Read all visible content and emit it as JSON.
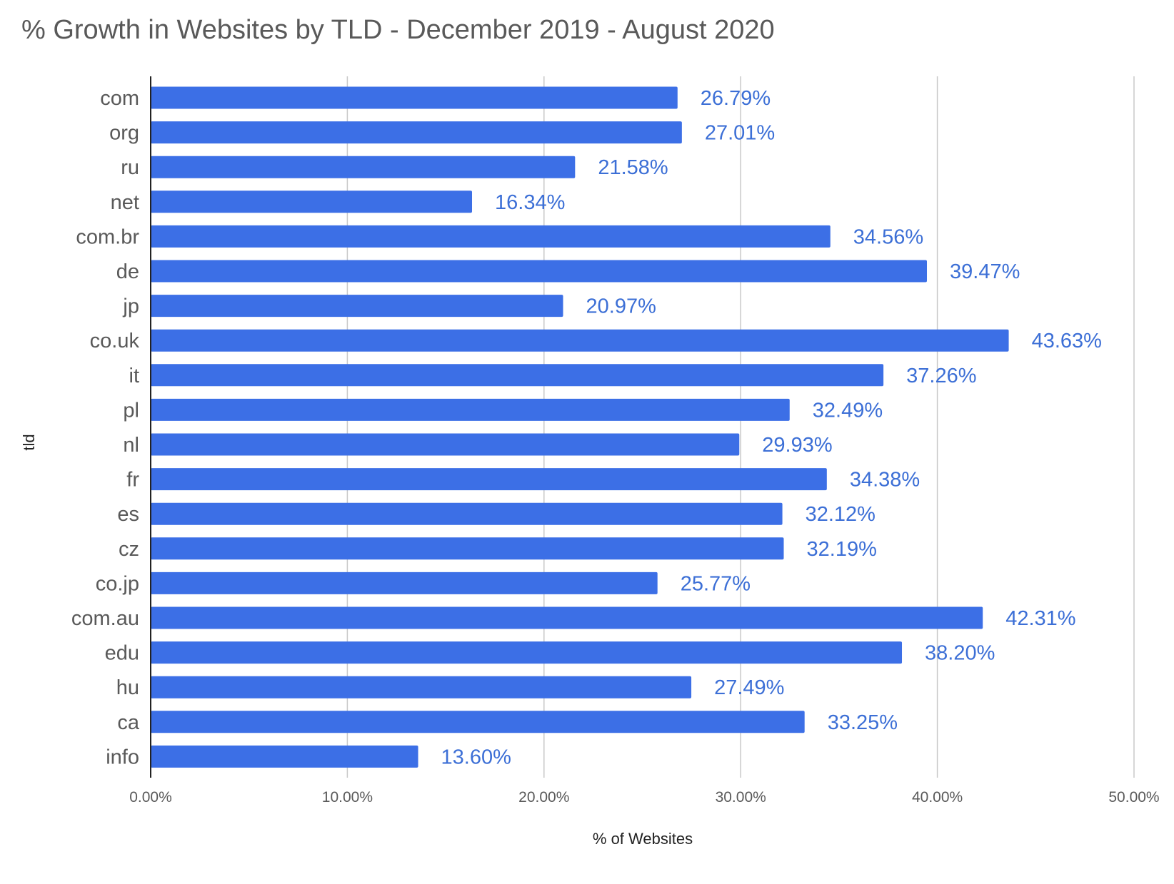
{
  "chart_data": {
    "type": "bar",
    "orientation": "horizontal",
    "title": "% Growth in Websites by TLD - December 2019 - August 2020",
    "xlabel": "% of Websites",
    "ylabel": "tld",
    "categories": [
      "com",
      "org",
      "ru",
      "net",
      "com.br",
      "de",
      "jp",
      "co.uk",
      "it",
      "pl",
      "nl",
      "fr",
      "es",
      "cz",
      "co.jp",
      "com.au",
      "edu",
      "hu",
      "ca",
      "info"
    ],
    "values": [
      26.79,
      27.01,
      21.58,
      16.34,
      34.56,
      39.47,
      20.97,
      43.63,
      37.26,
      32.49,
      29.93,
      34.38,
      32.12,
      32.19,
      25.77,
      42.31,
      38.2,
      27.49,
      33.25,
      13.6
    ],
    "data_labels": [
      "26.79%",
      "27.01%",
      "21.58%",
      "16.34%",
      "34.56%",
      "39.47%",
      "20.97%",
      "43.63%",
      "37.26%",
      "32.49%",
      "29.93%",
      "34.38%",
      "32.12%",
      "32.19%",
      "25.77%",
      "42.31%",
      "38.20%",
      "27.49%",
      "33.25%",
      "13.60%"
    ],
    "xlim": [
      0,
      50
    ],
    "xticks": [
      "0.00%",
      "10.00%",
      "20.00%",
      "30.00%",
      "40.00%",
      "50.00%"
    ],
    "grid": true,
    "legend": "none",
    "colors": {
      "bar": "#3c6fe6",
      "label": "#3c6fd6"
    }
  }
}
